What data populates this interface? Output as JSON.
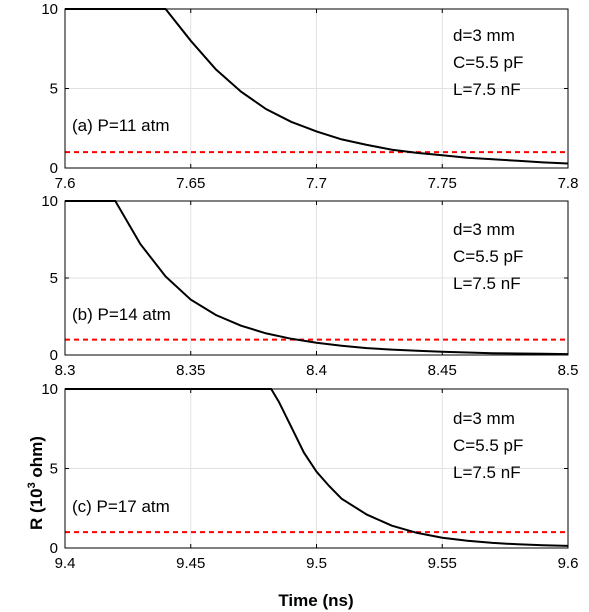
{
  "ylabel_main": "R (10",
  "ylabel_sup": "3",
  "ylabel_tail": " ohm)",
  "xlabel": "Time (ns)",
  "threshold_color": "#ff0000",
  "curve_color": "#000000",
  "chart_data": [
    {
      "type": "line",
      "panel_label": "(a)  P=11 atm",
      "params": [
        "d=3 mm",
        "C=5.5 pF",
        "L=7.5 nF"
      ],
      "xlim": [
        7.6,
        7.8
      ],
      "ylim": [
        0,
        10
      ],
      "xticks": [
        "7.6",
        "7.65",
        "7.7",
        "7.75",
        "7.8"
      ],
      "xtick_values": [
        7.6,
        7.65,
        7.7,
        7.75,
        7.8
      ],
      "yticks": [
        "0",
        "5",
        "10"
      ],
      "ytick_values": [
        0,
        5,
        10
      ],
      "threshold": 1.0,
      "series": [
        {
          "x": [
            7.6,
            7.62,
            7.64,
            7.65,
            7.66,
            7.67,
            7.68,
            7.69,
            7.7,
            7.71,
            7.72,
            7.73,
            7.74,
            7.75,
            7.76,
            7.77,
            7.78,
            7.79,
            7.8
          ],
          "y": [
            10,
            10,
            10,
            8.0,
            6.2,
            4.8,
            3.7,
            2.9,
            2.3,
            1.8,
            1.45,
            1.15,
            0.95,
            0.8,
            0.65,
            0.55,
            0.45,
            0.35,
            0.28
          ]
        }
      ]
    },
    {
      "type": "line",
      "panel_label": "(b)  P=14 atm",
      "params": [
        "d=3 mm",
        "C=5.5 pF",
        "L=7.5 nF"
      ],
      "xlim": [
        8.3,
        8.5
      ],
      "ylim": [
        0,
        10
      ],
      "xticks": [
        "8.3",
        "8.35",
        "8.4",
        "8.45",
        "8.5"
      ],
      "xtick_values": [
        8.3,
        8.35,
        8.4,
        8.45,
        8.5
      ],
      "yticks": [
        "0",
        "5",
        "10"
      ],
      "ytick_values": [
        0,
        5,
        10
      ],
      "threshold": 1.0,
      "series": [
        {
          "x": [
            8.3,
            8.31,
            8.32,
            8.33,
            8.34,
            8.35,
            8.36,
            8.37,
            8.38,
            8.39,
            8.4,
            8.41,
            8.42,
            8.43,
            8.44,
            8.45,
            8.46,
            8.47,
            8.48,
            8.49,
            8.5
          ],
          "y": [
            10,
            10,
            10,
            7.2,
            5.1,
            3.6,
            2.6,
            1.9,
            1.4,
            1.05,
            0.8,
            0.6,
            0.45,
            0.35,
            0.27,
            0.21,
            0.16,
            0.12,
            0.1,
            0.08,
            0.06
          ]
        }
      ]
    },
    {
      "type": "line",
      "panel_label": "(c)  P=17 atm",
      "params": [
        "d=3 mm",
        "C=5.5 pF",
        "L=7.5 nF"
      ],
      "xlim": [
        9.4,
        9.6
      ],
      "ylim": [
        0,
        10
      ],
      "xticks": [
        "9.4",
        "9.45",
        "9.5",
        "9.55",
        "9.6"
      ],
      "xtick_values": [
        9.4,
        9.45,
        9.5,
        9.55,
        9.6
      ],
      "yticks": [
        "0",
        "5",
        "10"
      ],
      "ytick_values": [
        0,
        5,
        10
      ],
      "threshold": 1.0,
      "series": [
        {
          "x": [
            9.4,
            9.44,
            9.482,
            9.485,
            9.49,
            9.495,
            9.5,
            9.505,
            9.51,
            9.52,
            9.53,
            9.54,
            9.55,
            9.56,
            9.57,
            9.58,
            9.59,
            9.6
          ],
          "y": [
            10,
            10,
            10,
            9.2,
            7.6,
            6.0,
            4.8,
            3.9,
            3.1,
            2.1,
            1.4,
            0.95,
            0.65,
            0.45,
            0.32,
            0.23,
            0.17,
            0.13
          ]
        }
      ]
    }
  ]
}
